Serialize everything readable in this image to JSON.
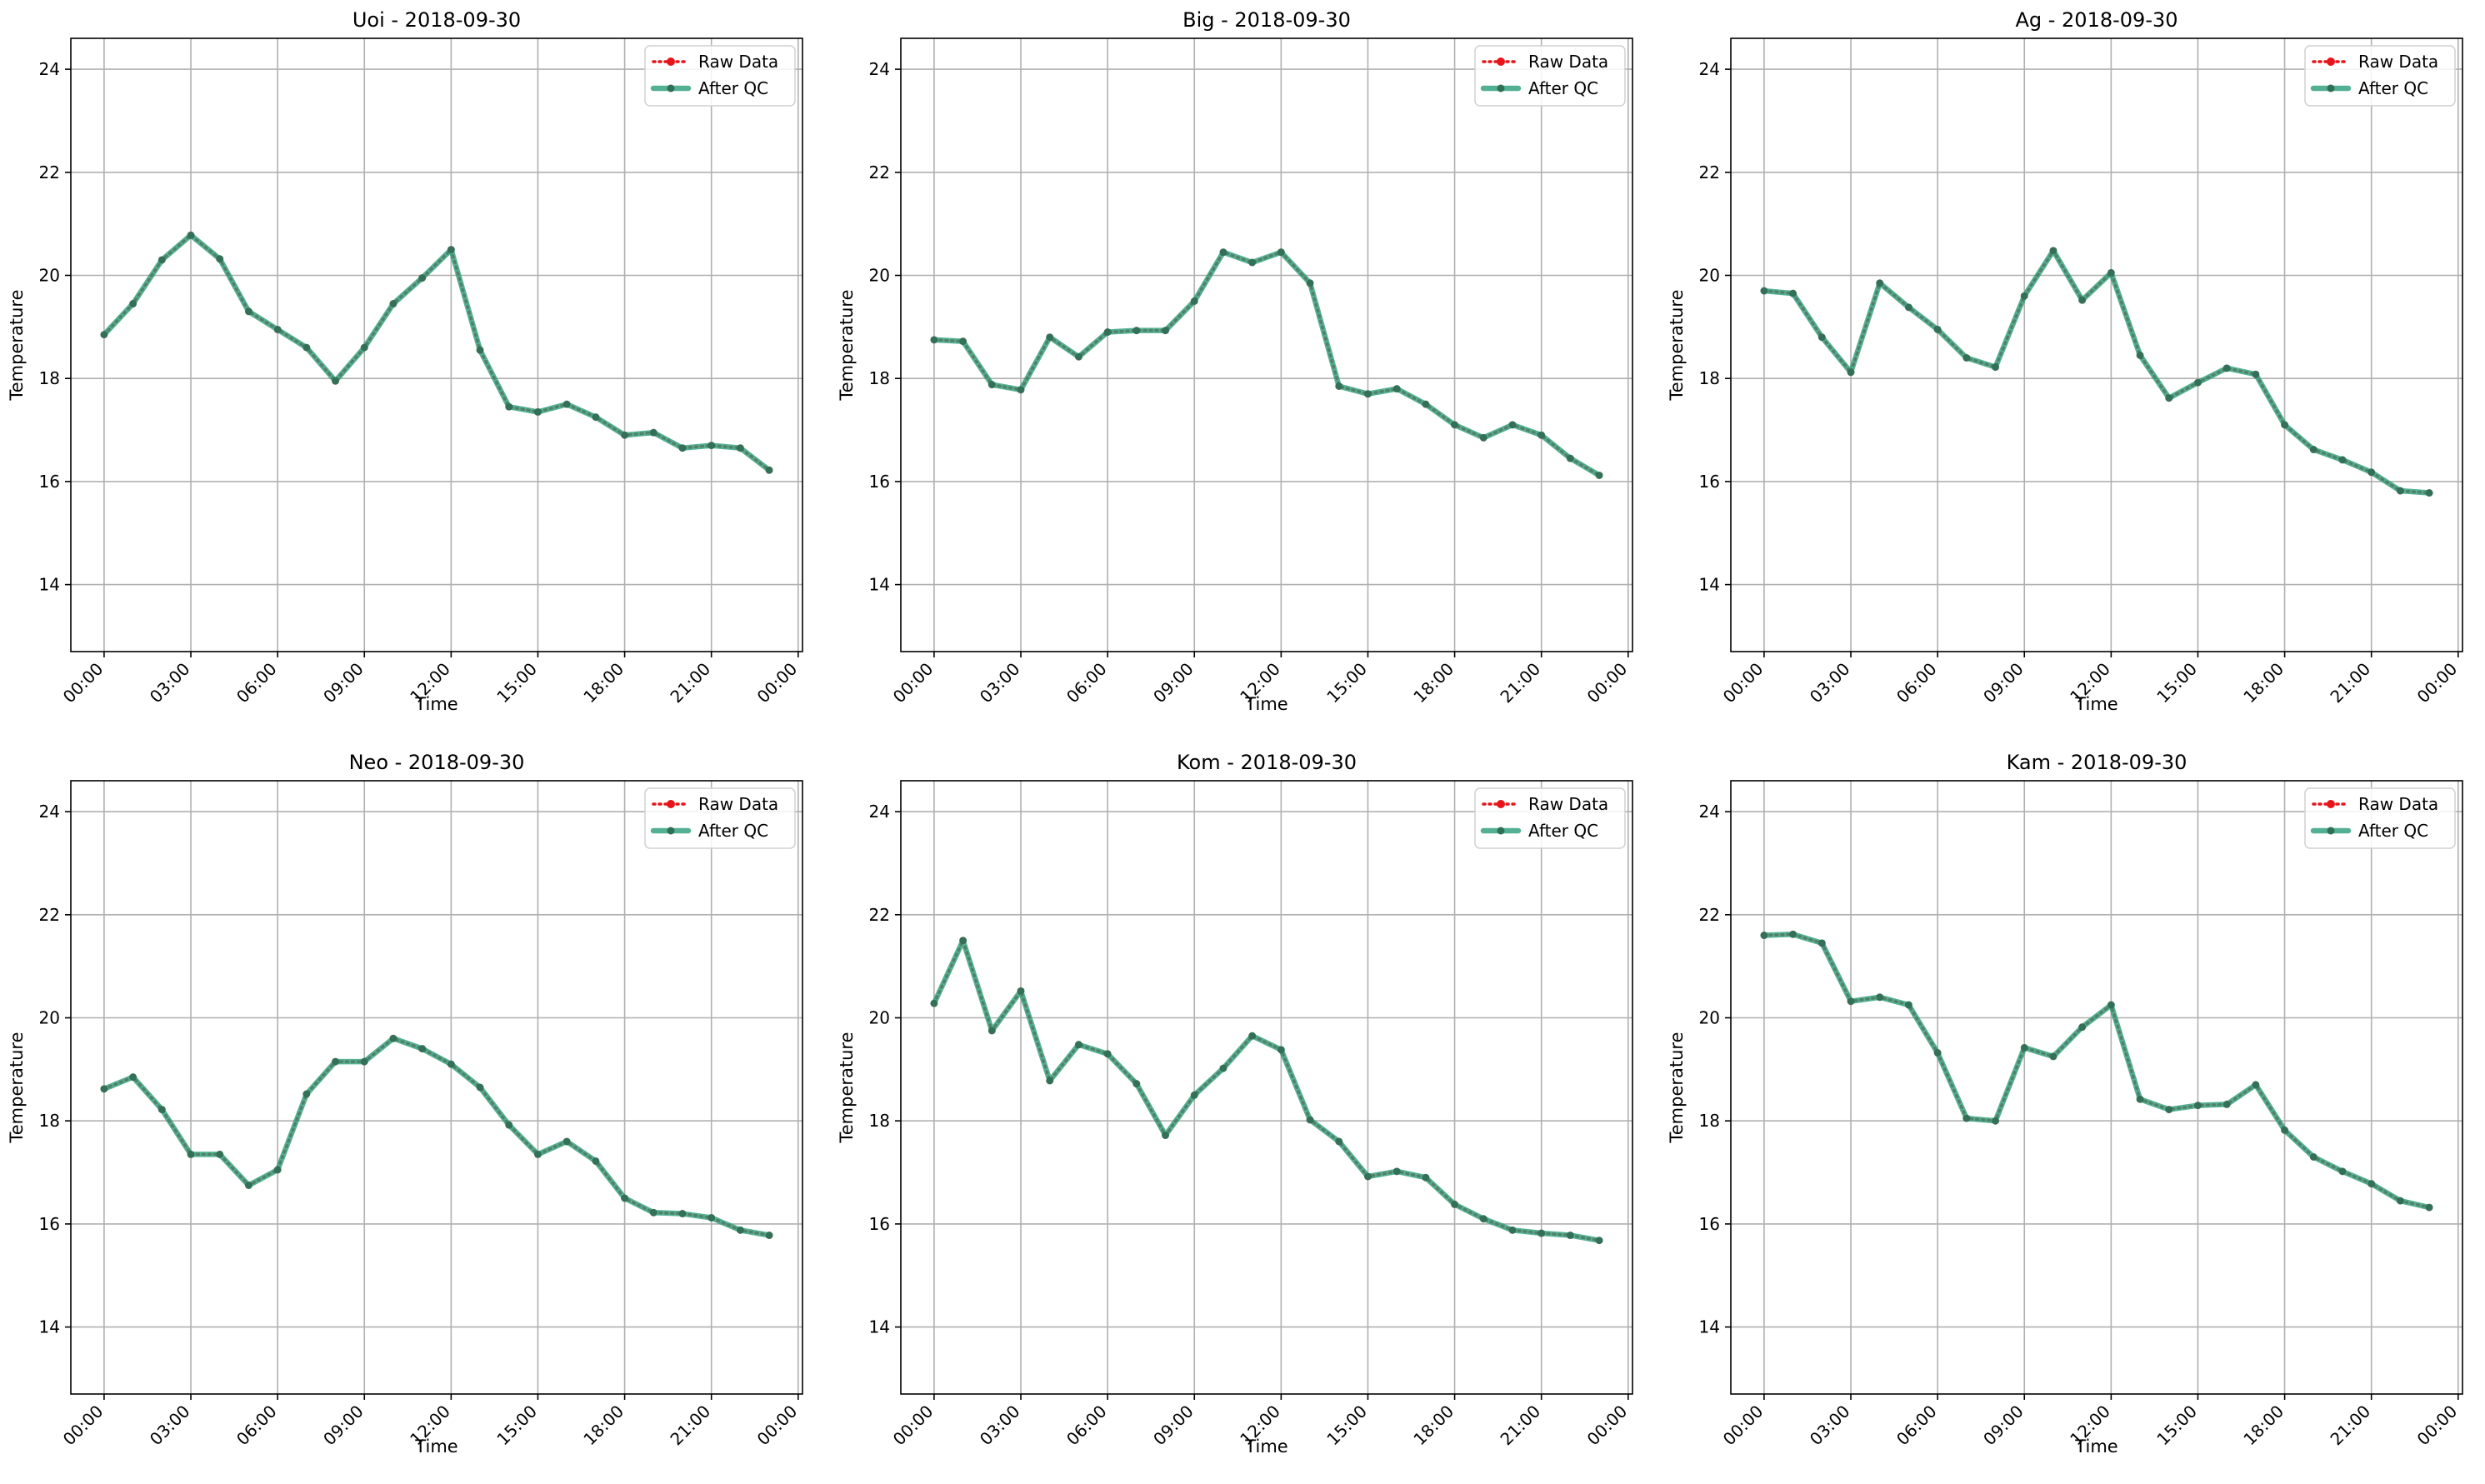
{
  "figure": {
    "series_styles": {
      "raw": {
        "color": "#e8141a",
        "line": "dotted",
        "marker": "circle"
      },
      "qc": {
        "color": "#2a9d7a",
        "line": "solid",
        "marker": "circle",
        "alpha": 0.8
      }
    }
  },
  "chart_data": [
    {
      "type": "line",
      "title": "Uoi - 2018-09-30",
      "xlabel": "Time",
      "ylabel": "Temperature",
      "xlim": [
        -1.15,
        24.15
      ],
      "ylim": [
        12.7,
        24.6
      ],
      "xticks": [
        0,
        3,
        6,
        9,
        12,
        15,
        18,
        21,
        24
      ],
      "xticklabels": [
        "00:00",
        "03:00",
        "06:00",
        "09:00",
        "12:00",
        "15:00",
        "18:00",
        "21:00",
        "00:00"
      ],
      "yticks": [
        14,
        16,
        18,
        20,
        22,
        24
      ],
      "yticklabels": [
        "14",
        "16",
        "18",
        "20",
        "22",
        "24"
      ],
      "grid": true,
      "legend": "top-right",
      "x": [
        0,
        1,
        2,
        3,
        4,
        5,
        6,
        7,
        8,
        9,
        10,
        11,
        12,
        13,
        14,
        15,
        16,
        17,
        18,
        19,
        20,
        21,
        22,
        23
      ],
      "series": [
        {
          "name": "Raw Data",
          "values": [
            18.85,
            19.45,
            20.3,
            20.78,
            20.32,
            19.3,
            18.95,
            18.6,
            17.95,
            18.6,
            19.45,
            19.95,
            20.5,
            18.55,
            17.45,
            17.35,
            17.5,
            17.25,
            16.9,
            16.95,
            16.65,
            16.7,
            16.65,
            16.22
          ]
        },
        {
          "name": "After QC",
          "values": [
            18.85,
            19.45,
            20.3,
            20.78,
            20.32,
            19.3,
            18.95,
            18.6,
            17.95,
            18.6,
            19.45,
            19.95,
            20.5,
            18.55,
            17.45,
            17.35,
            17.5,
            17.25,
            16.9,
            16.95,
            16.65,
            16.7,
            16.65,
            16.22
          ]
        }
      ]
    },
    {
      "type": "line",
      "title": "Big - 2018-09-30",
      "xlabel": "Time",
      "ylabel": "Temperature",
      "xlim": [
        -1.15,
        24.15
      ],
      "ylim": [
        12.7,
        24.6
      ],
      "xticks": [
        0,
        3,
        6,
        9,
        12,
        15,
        18,
        21,
        24
      ],
      "xticklabels": [
        "00:00",
        "03:00",
        "06:00",
        "09:00",
        "12:00",
        "15:00",
        "18:00",
        "21:00",
        "00:00"
      ],
      "yticks": [
        14,
        16,
        18,
        20,
        22,
        24
      ],
      "yticklabels": [
        "14",
        "16",
        "18",
        "20",
        "22",
        "24"
      ],
      "grid": true,
      "legend": "top-right",
      "x": [
        0,
        1,
        2,
        3,
        4,
        5,
        6,
        7,
        8,
        9,
        10,
        11,
        12,
        13,
        14,
        15,
        16,
        17,
        18,
        19,
        20,
        21,
        22,
        23
      ],
      "series": [
        {
          "name": "Raw Data",
          "values": [
            18.75,
            18.72,
            17.88,
            17.78,
            18.8,
            18.42,
            18.9,
            18.93,
            18.93,
            19.5,
            20.45,
            20.25,
            20.45,
            19.85,
            17.85,
            17.7,
            17.8,
            17.5,
            17.1,
            16.85,
            17.1,
            16.9,
            16.45,
            16.12
          ]
        },
        {
          "name": "After QC",
          "values": [
            18.75,
            18.72,
            17.88,
            17.78,
            18.8,
            18.42,
            18.9,
            18.93,
            18.93,
            19.5,
            20.45,
            20.25,
            20.45,
            19.85,
            17.85,
            17.7,
            17.8,
            17.5,
            17.1,
            16.85,
            17.1,
            16.9,
            16.45,
            16.12
          ]
        }
      ]
    },
    {
      "type": "line",
      "title": "Ag - 2018-09-30",
      "xlabel": "Time",
      "ylabel": "Temperature",
      "xlim": [
        -1.15,
        24.15
      ],
      "ylim": [
        12.7,
        24.6
      ],
      "xticks": [
        0,
        3,
        6,
        9,
        12,
        15,
        18,
        21,
        24
      ],
      "xticklabels": [
        "00:00",
        "03:00",
        "06:00",
        "09:00",
        "12:00",
        "15:00",
        "18:00",
        "21:00",
        "00:00"
      ],
      "yticks": [
        14,
        16,
        18,
        20,
        22,
        24
      ],
      "yticklabels": [
        "14",
        "16",
        "18",
        "20",
        "22",
        "24"
      ],
      "grid": true,
      "legend": "top-right",
      "x": [
        0,
        1,
        2,
        3,
        4,
        5,
        6,
        7,
        8,
        9,
        10,
        11,
        12,
        13,
        14,
        15,
        16,
        17,
        18,
        19,
        20,
        21,
        22,
        23
      ],
      "series": [
        {
          "name": "Raw Data",
          "values": [
            19.7,
            19.65,
            18.8,
            18.12,
            19.85,
            19.38,
            18.95,
            18.4,
            18.22,
            19.6,
            20.48,
            19.52,
            20.05,
            18.45,
            17.62,
            17.92,
            18.2,
            18.08,
            17.1,
            16.62,
            16.42,
            16.18,
            15.82,
            15.78
          ]
        },
        {
          "name": "After QC",
          "values": [
            19.7,
            19.65,
            18.8,
            18.12,
            19.85,
            19.38,
            18.95,
            18.4,
            18.22,
            19.6,
            20.48,
            19.52,
            20.05,
            18.45,
            17.62,
            17.92,
            18.2,
            18.08,
            17.1,
            16.62,
            16.42,
            16.18,
            15.82,
            15.78
          ]
        }
      ]
    },
    {
      "type": "line",
      "title": "Neo - 2018-09-30",
      "xlabel": "Time",
      "ylabel": "Temperature",
      "xlim": [
        -1.15,
        24.15
      ],
      "ylim": [
        12.7,
        24.6
      ],
      "xticks": [
        0,
        3,
        6,
        9,
        12,
        15,
        18,
        21,
        24
      ],
      "xticklabels": [
        "00:00",
        "03:00",
        "06:00",
        "09:00",
        "12:00",
        "15:00",
        "18:00",
        "21:00",
        "00:00"
      ],
      "yticks": [
        14,
        16,
        18,
        20,
        22,
        24
      ],
      "yticklabels": [
        "14",
        "16",
        "18",
        "20",
        "22",
        "24"
      ],
      "grid": true,
      "legend": "top-right",
      "x": [
        0,
        1,
        2,
        3,
        4,
        5,
        6,
        7,
        8,
        9,
        10,
        11,
        12,
        13,
        14,
        15,
        16,
        17,
        18,
        19,
        20,
        21,
        22,
        23
      ],
      "series": [
        {
          "name": "Raw Data",
          "values": [
            18.62,
            18.85,
            18.22,
            17.35,
            17.35,
            16.75,
            17.05,
            18.52,
            19.15,
            19.15,
            19.6,
            19.4,
            19.1,
            18.65,
            17.92,
            17.35,
            17.6,
            17.22,
            16.5,
            16.22,
            16.2,
            16.12,
            15.88,
            15.78
          ]
        },
        {
          "name": "After QC",
          "values": [
            18.62,
            18.85,
            18.22,
            17.35,
            17.35,
            16.75,
            17.05,
            18.52,
            19.15,
            19.15,
            19.6,
            19.4,
            19.1,
            18.65,
            17.92,
            17.35,
            17.6,
            17.22,
            16.5,
            16.22,
            16.2,
            16.12,
            15.88,
            15.78
          ]
        }
      ]
    },
    {
      "type": "line",
      "title": "Kom - 2018-09-30",
      "xlabel": "Time",
      "ylabel": "Temperature",
      "xlim": [
        -1.15,
        24.15
      ],
      "ylim": [
        12.7,
        24.6
      ],
      "xticks": [
        0,
        3,
        6,
        9,
        12,
        15,
        18,
        21,
        24
      ],
      "xticklabels": [
        "00:00",
        "03:00",
        "06:00",
        "09:00",
        "12:00",
        "15:00",
        "18:00",
        "21:00",
        "00:00"
      ],
      "yticks": [
        14,
        16,
        18,
        20,
        22,
        24
      ],
      "yticklabels": [
        "14",
        "16",
        "18",
        "20",
        "22",
        "24"
      ],
      "grid": true,
      "legend": "top-right",
      "x": [
        0,
        1,
        2,
        3,
        4,
        5,
        6,
        7,
        8,
        9,
        10,
        11,
        12,
        13,
        14,
        15,
        16,
        17,
        18,
        19,
        20,
        21,
        22,
        23
      ],
      "series": [
        {
          "name": "Raw Data",
          "values": [
            20.28,
            21.5,
            19.75,
            20.52,
            18.78,
            19.48,
            19.3,
            18.72,
            17.72,
            18.5,
            19.02,
            19.65,
            19.38,
            18.02,
            17.6,
            16.92,
            17.02,
            16.9,
            16.38,
            16.1,
            15.88,
            15.82,
            15.78,
            15.68
          ]
        },
        {
          "name": "After QC",
          "values": [
            20.28,
            21.5,
            19.75,
            20.52,
            18.78,
            19.48,
            19.3,
            18.72,
            17.72,
            18.5,
            19.02,
            19.65,
            19.38,
            18.02,
            17.6,
            16.92,
            17.02,
            16.9,
            16.38,
            16.1,
            15.88,
            15.82,
            15.78,
            15.68
          ]
        }
      ]
    },
    {
      "type": "line",
      "title": "Kam - 2018-09-30",
      "xlabel": "Time",
      "ylabel": "Temperature",
      "xlim": [
        -1.15,
        24.15
      ],
      "ylim": [
        12.7,
        24.6
      ],
      "xticks": [
        0,
        3,
        6,
        9,
        12,
        15,
        18,
        21,
        24
      ],
      "xticklabels": [
        "00:00",
        "03:00",
        "06:00",
        "09:00",
        "12:00",
        "15:00",
        "18:00",
        "21:00",
        "00:00"
      ],
      "yticks": [
        14,
        16,
        18,
        20,
        22,
        24
      ],
      "yticklabels": [
        "14",
        "16",
        "18",
        "20",
        "22",
        "24"
      ],
      "grid": true,
      "legend": "top-right",
      "x": [
        0,
        1,
        2,
        3,
        4,
        5,
        6,
        7,
        8,
        9,
        10,
        11,
        12,
        13,
        14,
        15,
        16,
        17,
        18,
        19,
        20,
        21,
        22,
        23
      ],
      "series": [
        {
          "name": "Raw Data",
          "values": [
            21.6,
            21.62,
            21.45,
            20.32,
            20.4,
            20.25,
            19.32,
            18.05,
            18.0,
            19.42,
            19.25,
            19.82,
            20.25,
            18.42,
            18.22,
            18.3,
            18.32,
            18.7,
            17.82,
            17.3,
            17.02,
            16.78,
            16.45,
            16.32
          ]
        },
        {
          "name": "After QC",
          "values": [
            21.6,
            21.62,
            21.45,
            20.32,
            20.4,
            20.25,
            19.32,
            18.05,
            18.0,
            19.42,
            19.25,
            19.82,
            20.25,
            18.42,
            18.22,
            18.3,
            18.32,
            18.7,
            17.82,
            17.3,
            17.02,
            16.78,
            16.45,
            16.32
          ]
        }
      ]
    }
  ]
}
